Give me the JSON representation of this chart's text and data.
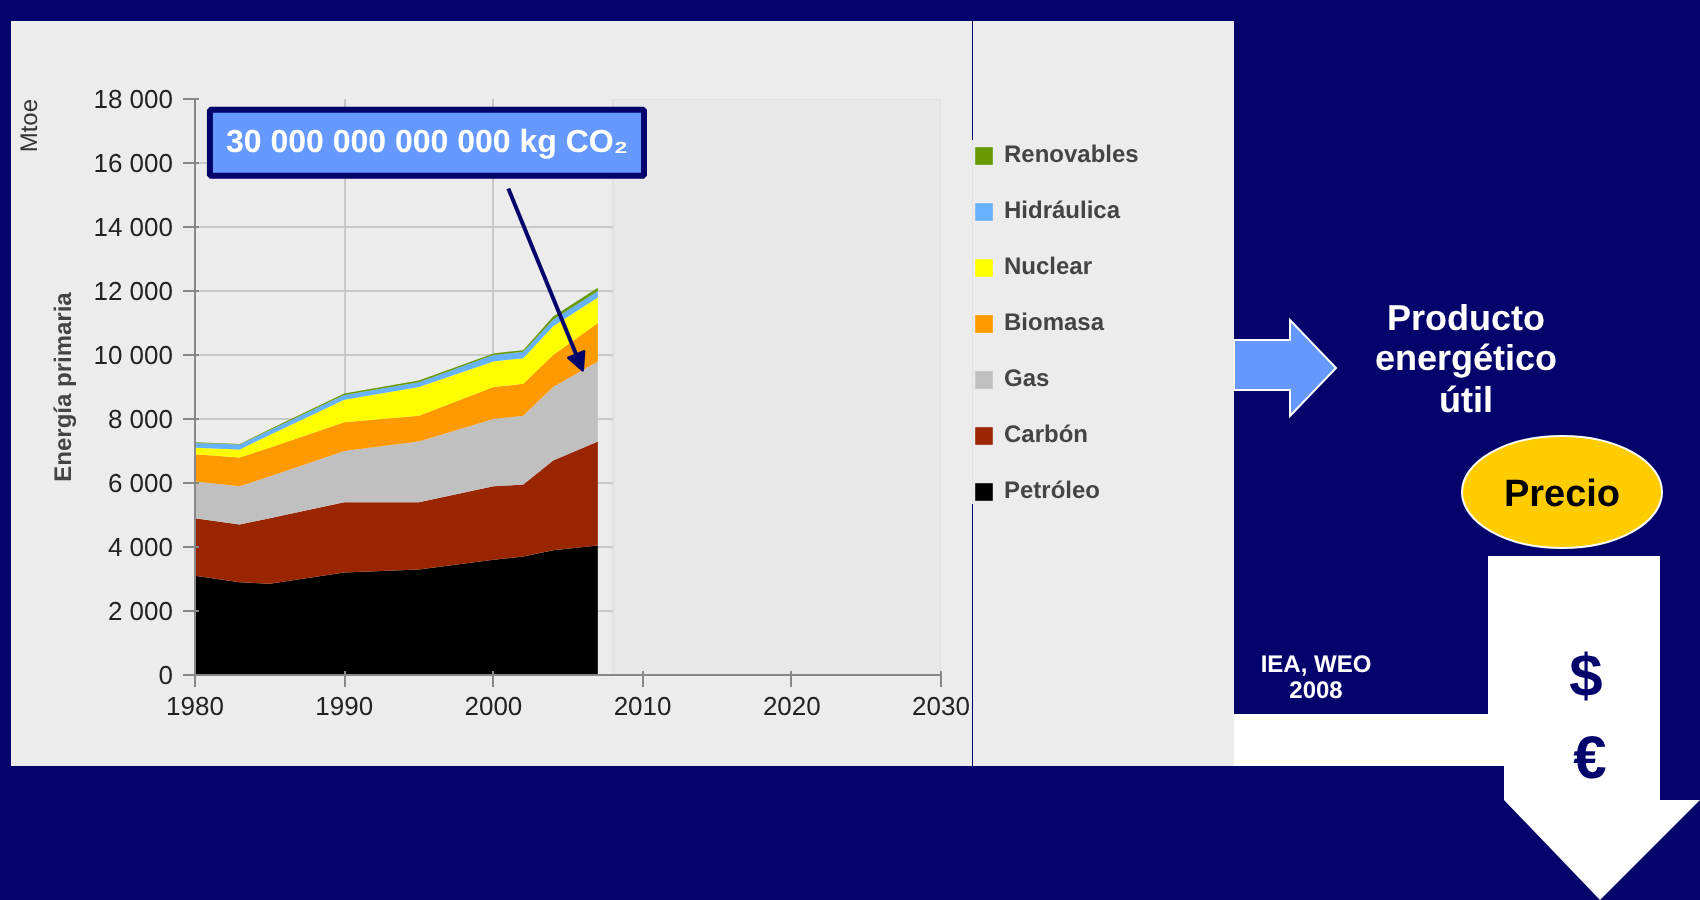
{
  "chart_data": {
    "type": "area",
    "stacked": true,
    "ylabel": "Energía primaria",
    "x": [
      1980,
      1983,
      1985,
      1990,
      1995,
      2000,
      2002,
      2004,
      2007
    ],
    "series": [
      {
        "name": "Petróleo",
        "color": "#000000",
        "values": [
          3100,
          2900,
          2850,
          3200,
          3300,
          3600,
          3700,
          3900,
          4050
        ]
      },
      {
        "name": "Carbón",
        "color": "#992600",
        "values": [
          1800,
          1800,
          2050,
          2200,
          2100,
          2300,
          2250,
          2800,
          3250
        ]
      },
      {
        "name": "Gas",
        "color": "#c0c0c0",
        "values": [
          1150,
          1200,
          1300,
          1600,
          1900,
          2100,
          2150,
          2300,
          2500
        ]
      },
      {
        "name": "Biomasa",
        "color": "#ff9900",
        "values": [
          850,
          900,
          900,
          900,
          800,
          1000,
          1000,
          1000,
          1200
        ]
      },
      {
        "name": "Nuclear",
        "color": "#ffff00",
        "values": [
          200,
          250,
          400,
          700,
          900,
          800,
          800,
          900,
          800
        ]
      },
      {
        "name": "Hidráulica",
        "color": "#66b2ff",
        "values": [
          150,
          150,
          150,
          150,
          150,
          200,
          200,
          200,
          200
        ]
      },
      {
        "name": "Renovables",
        "color": "#669900",
        "values": [
          20,
          20,
          30,
          50,
          50,
          50,
          50,
          100,
          100
        ]
      }
    ],
    "xlim": [
      1980,
      2030
    ],
    "xticks": [
      1980,
      1990,
      2000,
      2010,
      2020,
      2030
    ],
    "ylim": [
      0,
      18000
    ],
    "yticks": [
      {
        "value": 0,
        "label": "0"
      },
      {
        "value": 2000,
        "label": "2 000"
      },
      {
        "value": 4000,
        "label": "4 000"
      },
      {
        "value": 6000,
        "label": "6 000"
      },
      {
        "value": 8000,
        "label": "8 000"
      },
      {
        "value": 10000,
        "label": "10 000"
      },
      {
        "value": 12000,
        "label": "12 000"
      },
      {
        "value": 14000,
        "label": "14 000"
      },
      {
        "value": 16000,
        "label": "16 000"
      },
      {
        "value": 18000,
        "label": "18 000"
      }
    ],
    "bands": [
      {
        "axis": "x",
        "from": 2008,
        "to": 2030,
        "color": "#e8e8e8"
      }
    ],
    "grid": true,
    "legend": "right",
    "annotations": [
      {
        "text": "30 000 000 000 000 kg CO₂",
        "x": 2006,
        "y": 9500
      },
      "Mtoe",
      "Producto energético útil",
      "Precio",
      "$",
      "€",
      "IEA, WEO 2008"
    ]
  }
}
